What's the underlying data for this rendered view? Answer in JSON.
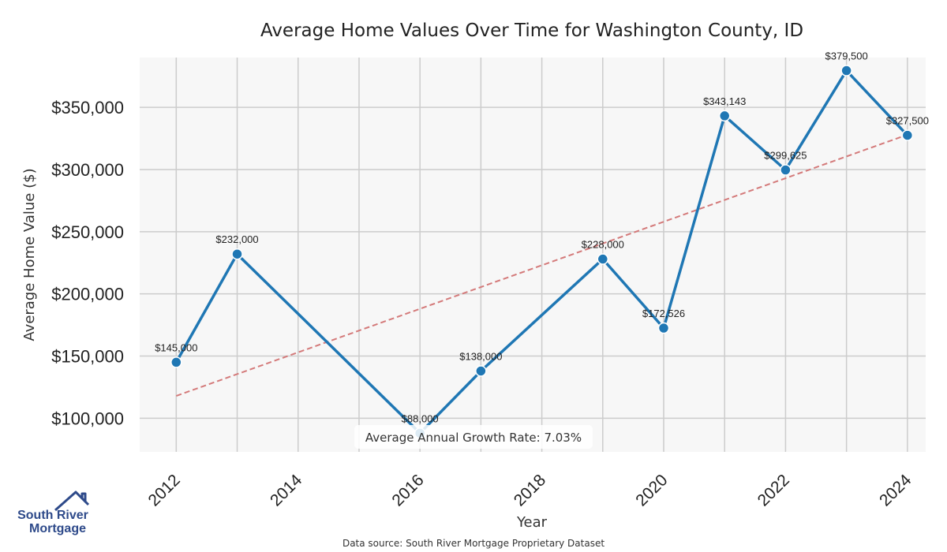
{
  "chart_data": {
    "type": "line",
    "title": "Average Home Values Over Time for Washington County, ID",
    "xlabel": "Year",
    "ylabel": "Average Home Value ($)",
    "x": [
      2012,
      2013,
      2016,
      2017,
      2019,
      2020,
      2021,
      2022,
      2023,
      2024
    ],
    "series": [
      {
        "values": [
          145000,
          232000,
          88000,
          138000,
          228000,
          172526,
          343143,
          299625,
          379500,
          327500
        ],
        "point_labels": [
          "$145,000",
          "$232,000",
          "$88,000",
          "$138,000",
          "$228,000",
          "$172,526",
          "$343,143",
          "$299,625",
          "$379,500",
          "$327,500"
        ],
        "color": "#1f77b4"
      }
    ],
    "trend_line": {
      "x": [
        2012,
        2024
      ],
      "values": [
        118000,
        328000
      ],
      "color": "#d47a7a",
      "style": "dashed"
    },
    "xlim": [
      2011.4,
      2024.3
    ],
    "ylim": [
      73000,
      390000
    ],
    "x_ticks": [
      2012,
      2014,
      2016,
      2018,
      2020,
      2022,
      2024
    ],
    "x_tick_labels": [
      "2012",
      "2014",
      "2016",
      "2018",
      "2020",
      "2022",
      "2024"
    ],
    "y_ticks": [
      100000,
      150000,
      200000,
      250000,
      300000,
      350000
    ],
    "y_tick_labels": [
      "$100,000",
      "$150,000",
      "$200,000",
      "$250,000",
      "$300,000",
      "$350,000"
    ],
    "grid": true,
    "annotation": "Average Annual Growth Rate: 7.03%"
  },
  "source_text": "Data source: South River Mortgage Proprietary Dataset",
  "logo": {
    "line1": "South River",
    "line2": "Mortgage",
    "color": "#2e4a8a"
  },
  "colors": {
    "plot_bg": "#f7f7f7",
    "grid": "#cccccc",
    "line": "#1f77b4",
    "trend": "#d47a7a"
  }
}
